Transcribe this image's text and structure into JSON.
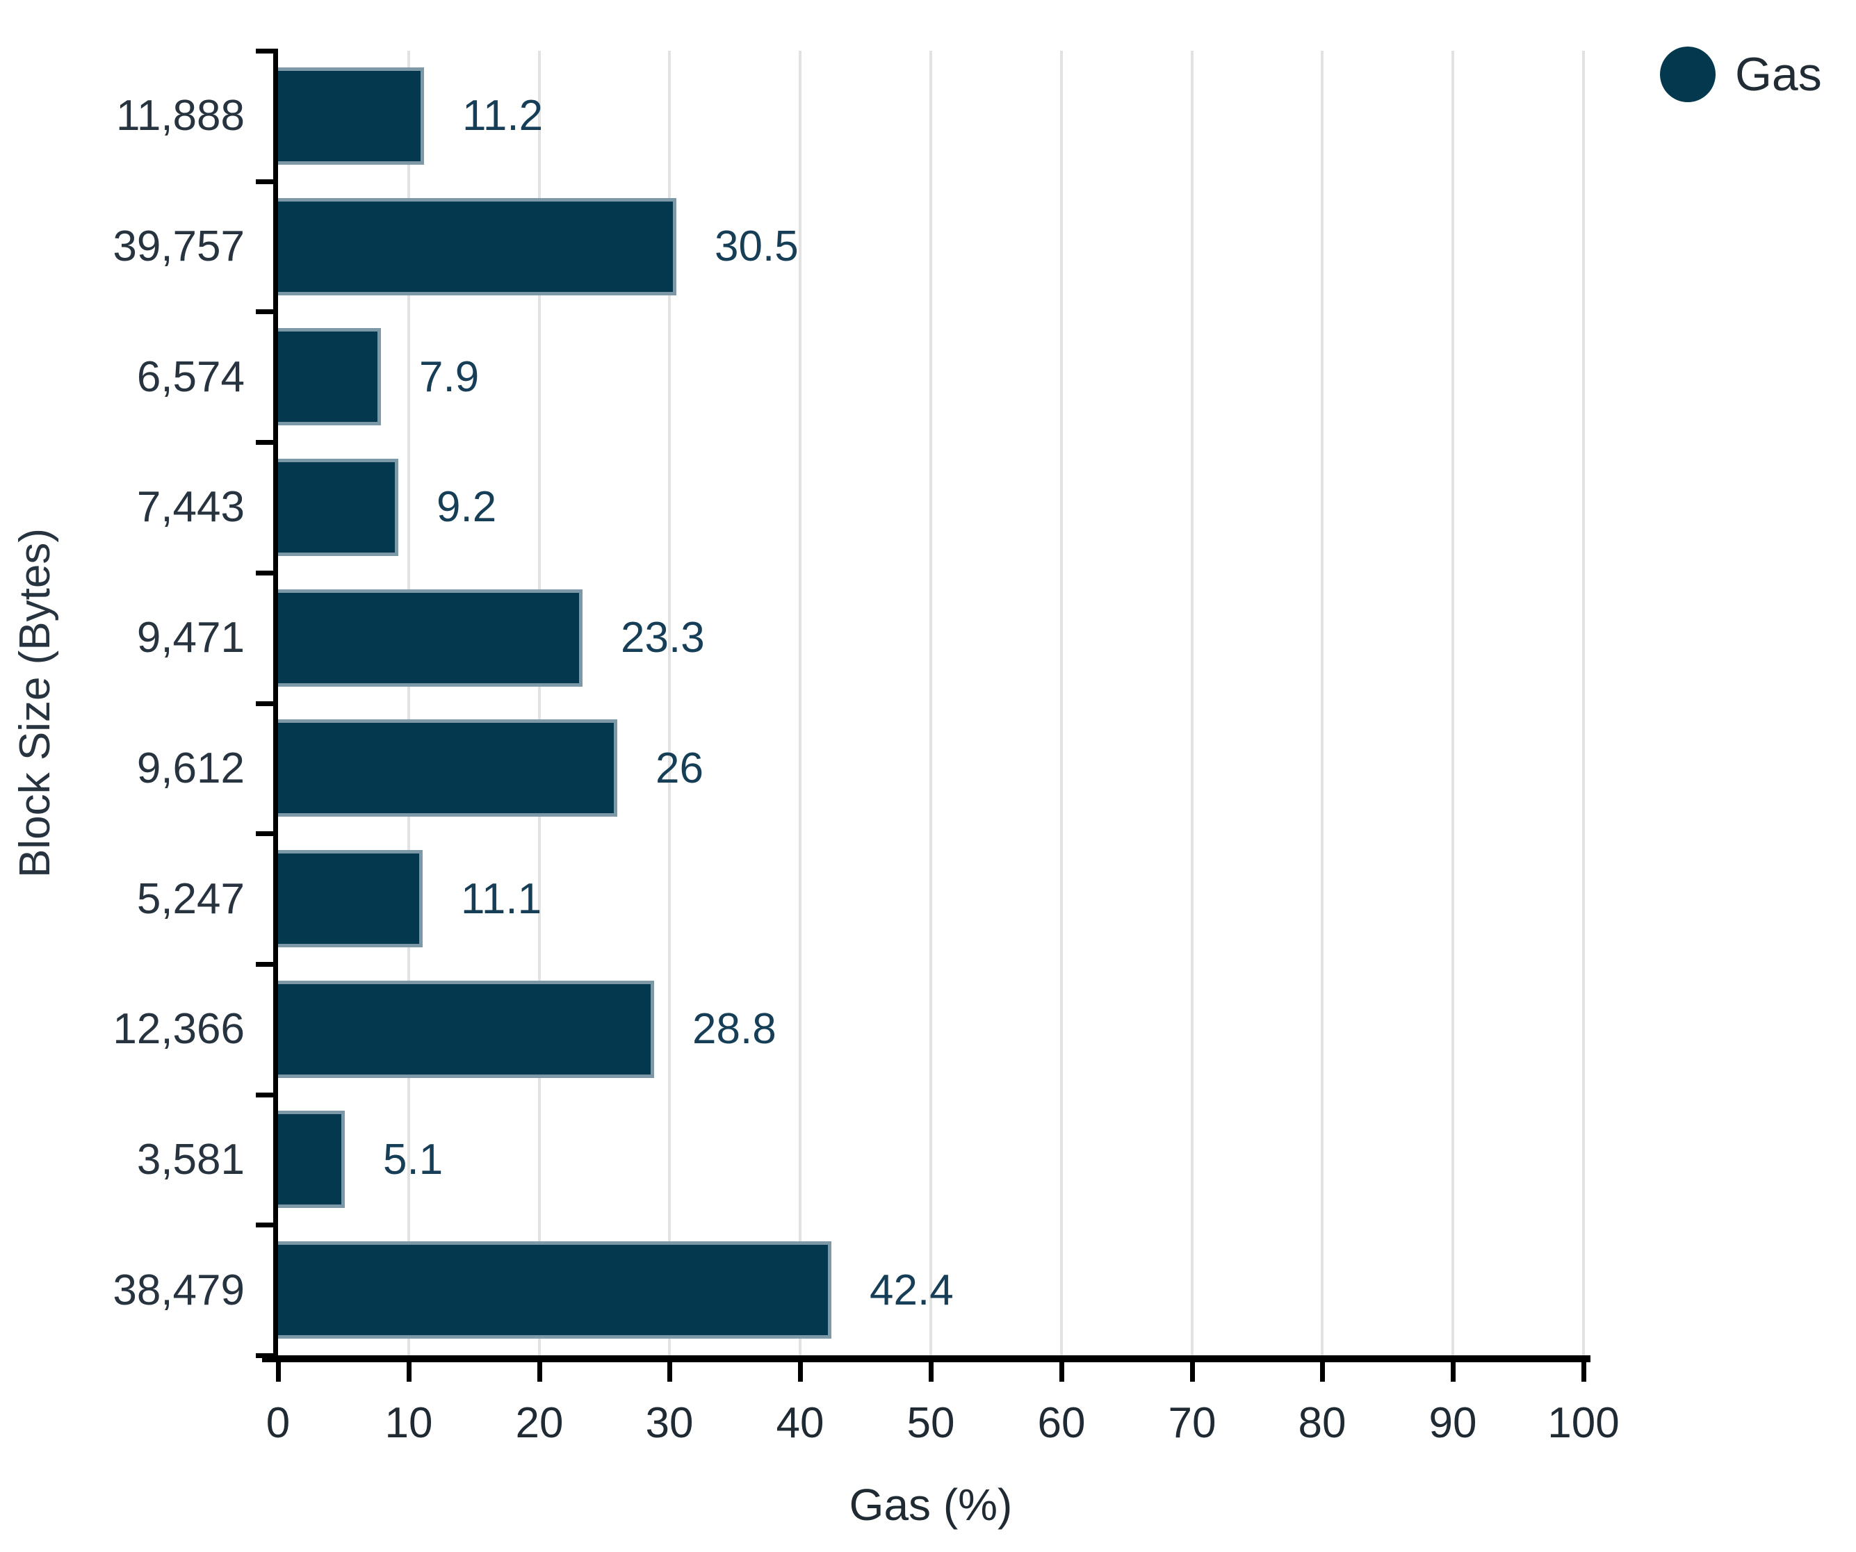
{
  "chart_data": {
    "type": "bar",
    "orientation": "horizontal",
    "title": "",
    "xlabel": "Gas (%)",
    "ylabel": "Block Size (Bytes)",
    "categories": [
      "11,888",
      "39,757",
      "6,574",
      "7,443",
      "9,471",
      "9,612",
      "5,247",
      "12,366",
      "3,581",
      "38,479"
    ],
    "series": [
      {
        "name": "Gas",
        "values": [
          11.2,
          30.5,
          7.9,
          9.2,
          23.3,
          26,
          11.1,
          28.8,
          5.1,
          42.4
        ],
        "value_labels": [
          "11.2",
          "30.5",
          "7.9",
          "9.2",
          "23.3",
          "26",
          "11.1",
          "28.8",
          "5.1",
          "42.4"
        ]
      }
    ],
    "xlim": [
      0,
      100
    ],
    "xticks": [
      0,
      10,
      20,
      30,
      40,
      50,
      60,
      70,
      80,
      90,
      100
    ],
    "grid": true,
    "gridlines": "vertical-light-gray",
    "legend": {
      "position": "top-right",
      "items": [
        {
          "label": "Gas",
          "marker": "circle",
          "color": "#03384e"
        }
      ]
    },
    "colors": {
      "bar_fill": "#03384e",
      "bar_border": "#7d98a6",
      "gridline": "#e2e2e2",
      "axis": "#000000",
      "value_label": "#173e57",
      "category_label": "#273440",
      "tick_label": "#1f2a33",
      "background": "#ffffff"
    }
  }
}
